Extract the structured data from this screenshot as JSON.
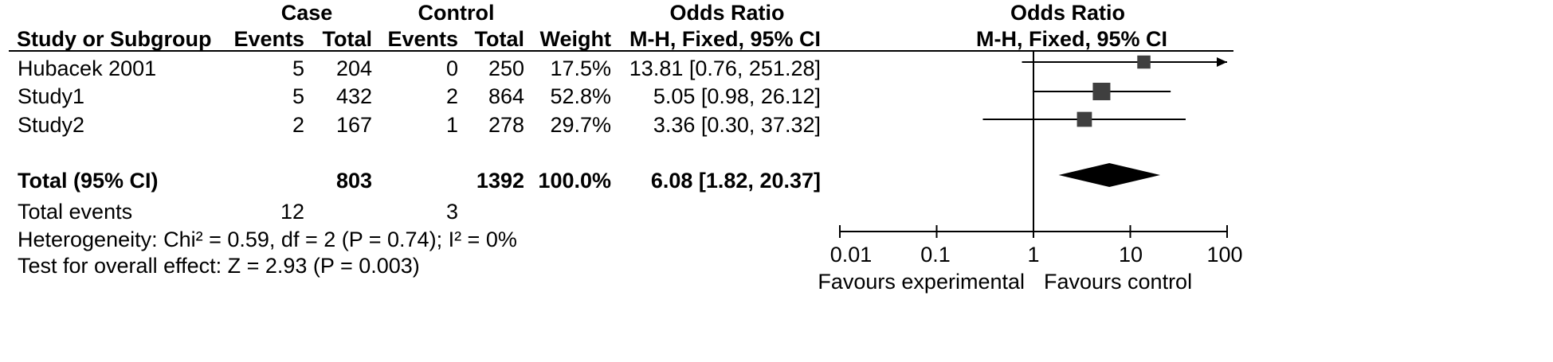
{
  "header": {
    "case_group": "Case",
    "control_group": "Control",
    "odds_ratio_table": "Odds Ratio",
    "odds_ratio_plot": "Odds Ratio",
    "study_col": "Study or Subgroup",
    "case_events_col": "Events",
    "case_total_col": "Total",
    "control_events_col": "Events",
    "control_total_col": "Total",
    "weight_col": "Weight",
    "method_table": "M-H, Fixed, 95% CI",
    "method_plot": "M-H, Fixed, 95% CI"
  },
  "studies": [
    {
      "name": "Hubacek  2001",
      "case_events": "5",
      "case_total": "204",
      "control_events": "0",
      "control_total": "250",
      "weight": "17.5%",
      "ci_text": "13.81 [0.76, 251.28]"
    },
    {
      "name": "Study1",
      "case_events": "5",
      "case_total": "432",
      "control_events": "2",
      "control_total": "864",
      "weight": "52.8%",
      "ci_text": "5.05 [0.98, 26.12]"
    },
    {
      "name": "Study2",
      "case_events": "2",
      "case_total": "167",
      "control_events": "1",
      "control_total": "278",
      "weight": "29.7%",
      "ci_text": "3.36 [0.30, 37.32]"
    }
  ],
  "total": {
    "label": "Total (95% CI)",
    "case_total": "803",
    "control_total": "1392",
    "weight": "100.0%",
    "ci_text": "6.08 [1.82, 20.37]"
  },
  "total_events": {
    "label": "Total events",
    "case": "12",
    "control": "3"
  },
  "heterogeneity": "Heterogeneity: Chi² = 0.59, df = 2 (P = 0.74); I² = 0%",
  "overall_effect": "Test for overall effect: Z = 2.93 (P = 0.003)",
  "axis": {
    "ticks": [
      "0.01",
      "0.1",
      "1",
      "10",
      "100"
    ],
    "favours_left": "Favours experimental",
    "favours_right": "Favours control"
  },
  "chart_data": {
    "type": "scatter",
    "x_scale": "log",
    "xlim": [
      0.01,
      100
    ],
    "reference_line": 1,
    "series": [
      {
        "name": "Hubacek  2001",
        "or": 13.81,
        "ci": [
          0.76,
          251.28
        ],
        "weight": 17.5
      },
      {
        "name": "Study1",
        "or": 5.05,
        "ci": [
          0.98,
          26.12
        ],
        "weight": 52.8
      },
      {
        "name": "Study2",
        "or": 3.36,
        "ci": [
          0.3,
          37.32
        ],
        "weight": 29.7
      }
    ],
    "pooled": {
      "or": 6.08,
      "ci": [
        1.82,
        20.37
      ]
    }
  }
}
